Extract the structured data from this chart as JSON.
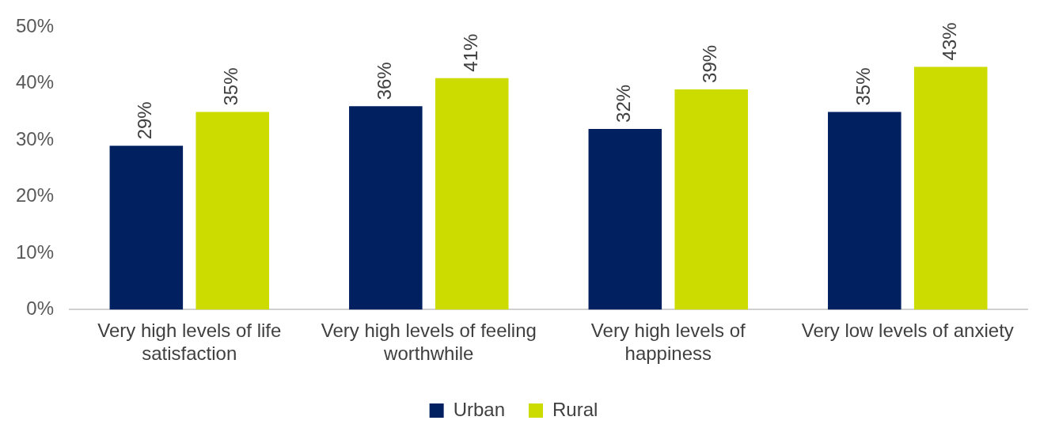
{
  "chart_data": {
    "type": "bar",
    "categories": [
      "Very high levels of life satisfaction",
      "Very high levels of feeling worthwhile",
      "Very high levels of happiness",
      "Very low levels of anxiety"
    ],
    "series": [
      {
        "name": "Urban",
        "color": "#002060",
        "values": [
          29,
          36,
          32,
          35
        ],
        "value_labels": [
          "29%",
          "36%",
          "32%",
          "35%"
        ]
      },
      {
        "name": "Rural",
        "color": "#cddc00",
        "values": [
          35,
          41,
          39,
          43
        ],
        "value_labels": [
          "35%",
          "41%",
          "39%",
          "43%"
        ]
      }
    ],
    "ylim": [
      0,
      50
    ],
    "yticks": [
      {
        "value": 0,
        "label": "0%"
      },
      {
        "value": 10,
        "label": "10%"
      },
      {
        "value": 20,
        "label": "20%"
      },
      {
        "value": 30,
        "label": "30%"
      },
      {
        "value": 40,
        "label": "40%"
      },
      {
        "value": 50,
        "label": "50%"
      }
    ],
    "grid": false,
    "legend": "bottom"
  }
}
